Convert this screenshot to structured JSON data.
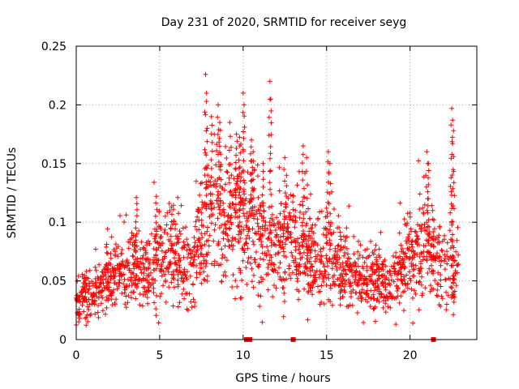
{
  "chart_data": {
    "type": "scatter",
    "title": "Day 231 of 2020, SRMTID for receiver seyg",
    "xlabel": "GPS time / hours",
    "ylabel": "SRMTID / TECUs",
    "xlim": [
      0,
      24
    ],
    "ylim": [
      0,
      0.25
    ],
    "xticks": [
      0,
      5,
      10,
      15,
      20
    ],
    "yticks": [
      0,
      0.05,
      0.1,
      0.15,
      0.2,
      0.25
    ],
    "xtick_labels": [
      "0",
      "5",
      "10",
      "15",
      "20"
    ],
    "ytick_labels": [
      "0",
      "0.05",
      "0.1",
      "0.15",
      "0.2",
      "0.25"
    ],
    "grid": true,
    "marker": "+",
    "color": "#ff0000",
    "trend": [
      {
        "x": 0.0,
        "y": 0.035
      },
      {
        "x": 0.5,
        "y": 0.04
      },
      {
        "x": 1.0,
        "y": 0.038
      },
      {
        "x": 1.5,
        "y": 0.042
      },
      {
        "x": 2.0,
        "y": 0.05
      },
      {
        "x": 2.5,
        "y": 0.055
      },
      {
        "x": 3.0,
        "y": 0.055
      },
      {
        "x": 3.5,
        "y": 0.06
      },
      {
        "x": 4.0,
        "y": 0.055
      },
      {
        "x": 4.5,
        "y": 0.06
      },
      {
        "x": 5.0,
        "y": 0.07
      },
      {
        "x": 5.5,
        "y": 0.07
      },
      {
        "x": 6.0,
        "y": 0.068
      },
      {
        "x": 6.5,
        "y": 0.065
      },
      {
        "x": 7.0,
        "y": 0.065
      },
      {
        "x": 7.5,
        "y": 0.085
      },
      {
        "x": 8.0,
        "y": 0.11
      },
      {
        "x": 8.5,
        "y": 0.105
      },
      {
        "x": 9.0,
        "y": 0.1
      },
      {
        "x": 9.5,
        "y": 0.105
      },
      {
        "x": 10.0,
        "y": 0.095
      },
      {
        "x": 10.5,
        "y": 0.1
      },
      {
        "x": 11.0,
        "y": 0.085
      },
      {
        "x": 11.5,
        "y": 0.08
      },
      {
        "x": 12.0,
        "y": 0.09
      },
      {
        "x": 12.5,
        "y": 0.075
      },
      {
        "x": 13.0,
        "y": 0.085
      },
      {
        "x": 13.5,
        "y": 0.08
      },
      {
        "x": 14.0,
        "y": 0.07
      },
      {
        "x": 14.5,
        "y": 0.065
      },
      {
        "x": 15.0,
        "y": 0.075
      },
      {
        "x": 15.5,
        "y": 0.07
      },
      {
        "x": 16.0,
        "y": 0.06
      },
      {
        "x": 16.5,
        "y": 0.055
      },
      {
        "x": 17.0,
        "y": 0.05
      },
      {
        "x": 17.5,
        "y": 0.048
      },
      {
        "x": 18.0,
        "y": 0.05
      },
      {
        "x": 18.5,
        "y": 0.048
      },
      {
        "x": 19.0,
        "y": 0.05
      },
      {
        "x": 19.5,
        "y": 0.06
      },
      {
        "x": 20.0,
        "y": 0.07
      },
      {
        "x": 20.5,
        "y": 0.075
      },
      {
        "x": 21.0,
        "y": 0.08
      },
      {
        "x": 21.5,
        "y": 0.07
      },
      {
        "x": 22.0,
        "y": 0.06
      },
      {
        "x": 22.5,
        "y": 0.055
      },
      {
        "x": 22.9,
        "y": 0.06
      }
    ],
    "peaks": [
      {
        "x": 7.75,
        "y": 0.226
      },
      {
        "x": 7.8,
        "y": 0.203
      },
      {
        "x": 8.1,
        "y": 0.19
      },
      {
        "x": 8.5,
        "y": 0.2
      },
      {
        "x": 8.6,
        "y": 0.185
      },
      {
        "x": 9.2,
        "y": 0.185
      },
      {
        "x": 9.6,
        "y": 0.175
      },
      {
        "x": 9.8,
        "y": 0.165
      },
      {
        "x": 10.0,
        "y": 0.21
      },
      {
        "x": 10.05,
        "y": 0.2
      },
      {
        "x": 10.5,
        "y": 0.17
      },
      {
        "x": 10.6,
        "y": 0.16
      },
      {
        "x": 11.6,
        "y": 0.22
      },
      {
        "x": 11.65,
        "y": 0.205
      },
      {
        "x": 11.2,
        "y": 0.15
      },
      {
        "x": 12.5,
        "y": 0.155
      },
      {
        "x": 12.6,
        "y": 0.14
      },
      {
        "x": 13.6,
        "y": 0.165
      },
      {
        "x": 13.8,
        "y": 0.155
      },
      {
        "x": 15.1,
        "y": 0.16
      },
      {
        "x": 15.2,
        "y": 0.15
      },
      {
        "x": 3.6,
        "y": 0.121
      },
      {
        "x": 4.8,
        "y": 0.122
      },
      {
        "x": 5.7,
        "y": 0.113
      },
      {
        "x": 21.0,
        "y": 0.16
      },
      {
        "x": 21.1,
        "y": 0.15
      },
      {
        "x": 22.5,
        "y": 0.197
      },
      {
        "x": 22.55,
        "y": 0.187
      },
      {
        "x": 22.6,
        "y": 0.178
      },
      {
        "x": 22.45,
        "y": 0.138
      }
    ],
    "outage_markers_x": [
      10.2,
      10.3,
      10.4,
      13.0,
      21.4
    ],
    "n_points_approx": 2000
  }
}
